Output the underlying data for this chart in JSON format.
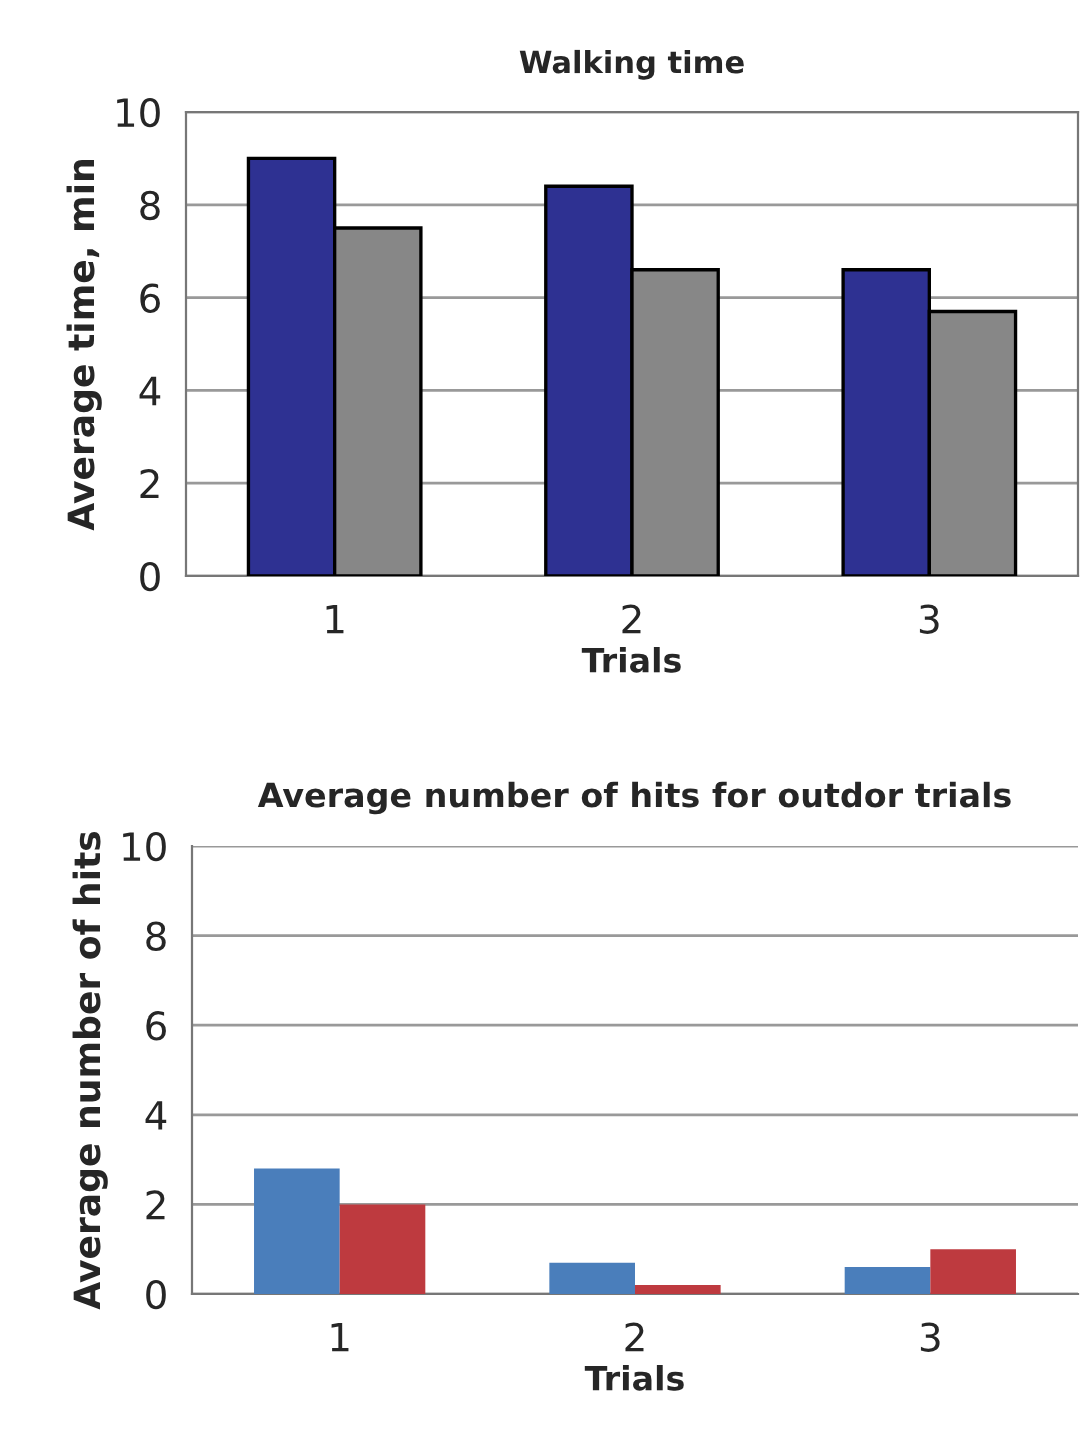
{
  "chart_data": [
    {
      "type": "bar",
      "title": "Walking time",
      "xlabel": "Trials",
      "ylabel": "Average time, min",
      "categories": [
        "1",
        "2",
        "3"
      ],
      "series": [
        {
          "color": "#2e3192",
          "values": [
            9.0,
            8.4,
            6.6
          ]
        },
        {
          "color": "#878787",
          "values": [
            7.5,
            6.6,
            5.7
          ]
        }
      ],
      "ylim": [
        0,
        10
      ],
      "yticks": [
        0,
        2,
        4,
        6,
        8,
        10
      ],
      "grid": "y",
      "legend": false
    },
    {
      "type": "bar",
      "title": "Average number of hits for outdor trials",
      "xlabel": "Trials",
      "ylabel": "Average number of hits",
      "categories": [
        "1",
        "2",
        "3"
      ],
      "series": [
        {
          "color": "#4a7ebb",
          "values": [
            2.8,
            0.7,
            0.6
          ]
        },
        {
          "color": "#be3a3f",
          "values": [
            2.0,
            0.2,
            1.0
          ]
        }
      ],
      "ylim": [
        0,
        10
      ],
      "yticks": [
        0,
        2,
        4,
        6,
        8,
        10
      ],
      "grid": "y",
      "legend": false
    }
  ]
}
